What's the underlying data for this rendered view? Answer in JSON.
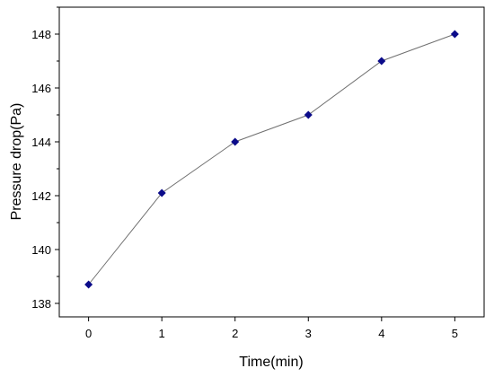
{
  "chart_data": {
    "type": "line",
    "title": "",
    "xlabel": "Time(min)",
    "ylabel": "Pressure drop(Pa)",
    "x": [
      0,
      1,
      2,
      3,
      4,
      5
    ],
    "series": [
      {
        "values": [
          138.7,
          142.1,
          144.0,
          145.0,
          147.0,
          148.0
        ]
      }
    ],
    "xlim": [
      -0.4,
      5.4
    ],
    "ylim": [
      137.5,
      149.0
    ],
    "xticks": [
      0,
      1,
      2,
      3,
      4,
      5
    ],
    "yticks": [
      138,
      140,
      142,
      144,
      146,
      148
    ],
    "grid": false,
    "legend": "none",
    "marker": "diamond",
    "marker_color": "#0b0b8a",
    "line_color": "#707070"
  }
}
